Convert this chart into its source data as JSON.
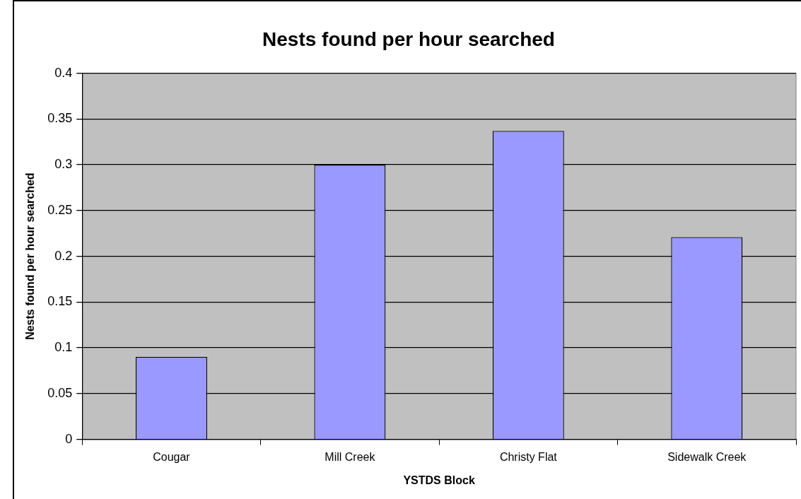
{
  "chart_data": {
    "type": "bar",
    "title": "Nests found per hour searched",
    "xlabel": "YSTDS Block",
    "ylabel": "Nests found per hour searched",
    "categories": [
      "Cougar",
      "Mill Creek",
      "Christy Flat",
      "Sidewalk Creek"
    ],
    "values": [
      0.09,
      0.3,
      0.337,
      0.221
    ],
    "color": "#9999ff",
    "ylim": [
      0,
      0.4
    ],
    "yticks": [
      0,
      0.05,
      0.1,
      0.15,
      0.2,
      0.25,
      0.3,
      0.35,
      0.4
    ],
    "grid": "y",
    "legend": false
  }
}
